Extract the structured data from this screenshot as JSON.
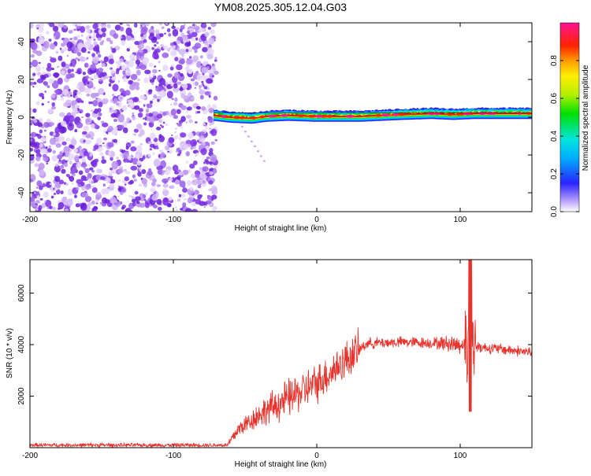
{
  "title": "YM08.2025.305.12.04.G03",
  "colors": {
    "scatter": "#7b2fe6",
    "scatter_light": "#c9a6f2",
    "line": "#e8332c",
    "band_core": "#d42020",
    "frame": "#000000"
  },
  "chart_data": [
    {
      "type": "heatmap",
      "name": "spectrogram",
      "xlabel": "Height of straight line (km)",
      "ylabel": "Frequency (Hz)",
      "xlim": [
        -200,
        150
      ],
      "ylim": [
        -50,
        50
      ],
      "xticks": [
        -200,
        -100,
        0,
        100
      ],
      "yticks": [
        -40,
        -20,
        0,
        20,
        40
      ],
      "xtick_labels": [
        "-200",
        "-100",
        "0",
        "100"
      ],
      "ytick_labels": [
        "-40",
        "-20",
        "0",
        "20",
        "40"
      ],
      "noise_region_x": [
        -200,
        -70
      ],
      "band_region_x": [
        -72,
        150
      ],
      "band_center_hz": [
        {
          "x": -72,
          "y": 1
        },
        {
          "x": -60,
          "y": 0
        },
        {
          "x": -45,
          "y": -0.5
        },
        {
          "x": -35,
          "y": 0.5
        },
        {
          "x": -20,
          "y": 1
        },
        {
          "x": 0,
          "y": 0.5
        },
        {
          "x": 30,
          "y": 0.5
        },
        {
          "x": 60,
          "y": 1.5
        },
        {
          "x": 80,
          "y": 2
        },
        {
          "x": 95,
          "y": 1.5
        },
        {
          "x": 110,
          "y": 2
        },
        {
          "x": 150,
          "y": 2
        }
      ],
      "colorbar": {
        "label": "Normalized spectral amplitude",
        "range": [
          0,
          1
        ],
        "ticks": [
          0.0,
          0.2,
          0.4,
          0.6,
          0.8
        ],
        "tick_labels": [
          "0.0",
          "0.2",
          "0.4",
          "0.6",
          "0.8"
        ]
      }
    },
    {
      "type": "line",
      "name": "snr",
      "xlabel": "Height of straight line (km)",
      "ylabel": "SNR (10 * v/v)",
      "xlim": [
        -200,
        150
      ],
      "ylim": [
        0,
        7300
      ],
      "xticks": [
        -200,
        -100,
        0,
        100
      ],
      "yticks": [
        2000,
        4000,
        6000
      ],
      "xtick_labels": [
        "-200",
        "-100",
        "0",
        "100"
      ],
      "ytick_labels": [
        "2000",
        "4000",
        "6000"
      ],
      "envelope": [
        {
          "x": -200,
          "y": 100
        },
        {
          "x": -62,
          "y": 100
        },
        {
          "x": -55,
          "y": 700
        },
        {
          "x": -40,
          "y": 1300
        },
        {
          "x": -20,
          "y": 1900
        },
        {
          "x": 0,
          "y": 2500
        },
        {
          "x": 20,
          "y": 3400
        },
        {
          "x": 35,
          "y": 4050
        },
        {
          "x": 60,
          "y": 4100
        },
        {
          "x": 90,
          "y": 4050
        },
        {
          "x": 100,
          "y": 4000
        },
        {
          "x": 106,
          "y": 4000
        },
        {
          "x": 115,
          "y": 3900
        },
        {
          "x": 150,
          "y": 3700
        }
      ],
      "spike": {
        "x": 107,
        "max": 7300,
        "min": 1400
      }
    }
  ]
}
